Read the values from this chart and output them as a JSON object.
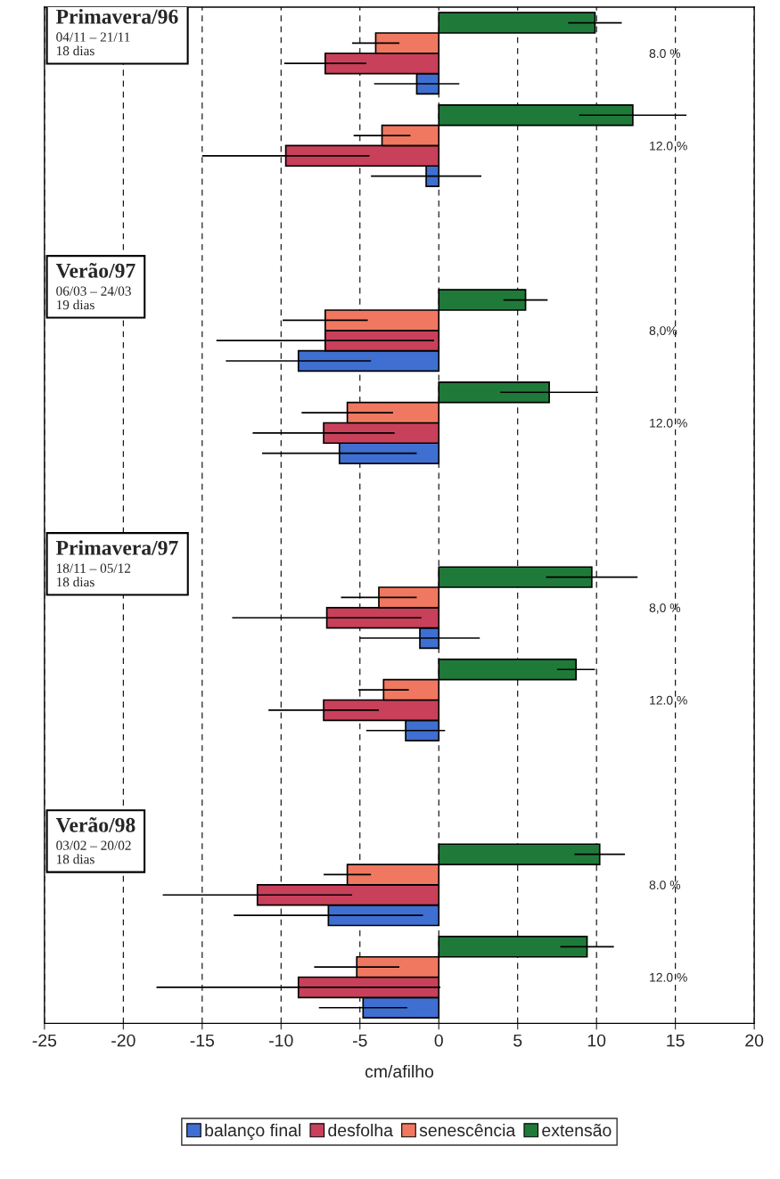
{
  "chart_data": {
    "type": "bar",
    "orientation": "horizontal",
    "categories": [
      "8.0 %",
      "12.0 %",
      null,
      "8,0%",
      "12.0 %",
      null,
      "8,0 %",
      "12.0 %",
      null,
      "8.0 %",
      "12.0 %"
    ],
    "series": [
      {
        "name": "balanço final",
        "color": "#3f6fd0",
        "values": [
          -1.4,
          -0.8,
          null,
          -8.9,
          -6.3,
          null,
          -1.2,
          -2.1,
          null,
          -7.0,
          -4.8
        ],
        "errors": [
          2.7,
          3.5,
          null,
          4.6,
          4.9,
          null,
          3.8,
          2.5,
          null,
          6.0,
          2.8
        ]
      },
      {
        "name": "desfolha",
        "color": "#c8405a",
        "values": [
          -7.2,
          -9.7,
          null,
          -7.2,
          -7.3,
          null,
          -7.1,
          -7.3,
          null,
          -11.5,
          -8.9
        ],
        "errors": [
          2.6,
          5.3,
          null,
          6.9,
          4.5,
          null,
          6.0,
          3.5,
          null,
          6.0,
          9.0
        ]
      },
      {
        "name": "senescência",
        "color": "#f07860",
        "values": [
          -4.0,
          -3.6,
          null,
          -7.2,
          -5.8,
          null,
          -3.8,
          -3.5,
          null,
          -5.8,
          -5.2
        ],
        "errors": [
          1.5,
          1.8,
          null,
          2.7,
          2.9,
          null,
          2.4,
          1.6,
          null,
          1.5,
          2.7
        ]
      },
      {
        "name": "extensão",
        "color": "#1f7a3a",
        "values": [
          9.9,
          12.3,
          null,
          5.5,
          7.0,
          null,
          9.7,
          8.7,
          null,
          10.2,
          9.4
        ],
        "errors": [
          1.7,
          3.4,
          null,
          1.4,
          3.1,
          null,
          2.9,
          1.2,
          null,
          1.6,
          1.7
        ]
      }
    ],
    "xlim": [
      -25,
      20
    ],
    "xticks": [
      -25,
      -20,
      -15,
      -10,
      -5,
      0,
      5,
      10,
      15,
      20
    ],
    "xlabel": "cm/afilho",
    "annotations": [
      "Primavera/96\n04/11 – 21/11\n18 dias",
      "Verão/97\n06/03 – 24/03\n19 dias",
      "Primavera/97\n18/11 – 05/12\n18 dias",
      "Verão/98\n03/02 – 20/02\n18 dias"
    ],
    "grid": "x",
    "legend": "bottom"
  }
}
